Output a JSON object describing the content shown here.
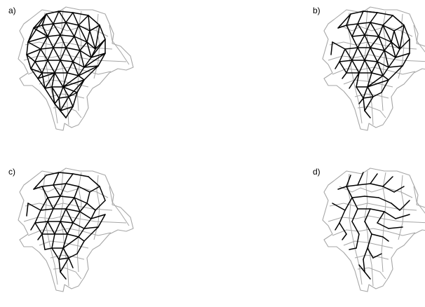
{
  "panels": [
    {
      "label": "a)",
      "network": "delaunay-triangulation"
    },
    {
      "label": "b)",
      "network": "sphere-of-influence"
    },
    {
      "label": "c)",
      "network": "gabriel-graph"
    },
    {
      "label": "d)",
      "network": "minimum-spanning-tree"
    }
  ],
  "colors": {
    "boundary": "#a6a6a6",
    "edges": "#000000"
  }
}
